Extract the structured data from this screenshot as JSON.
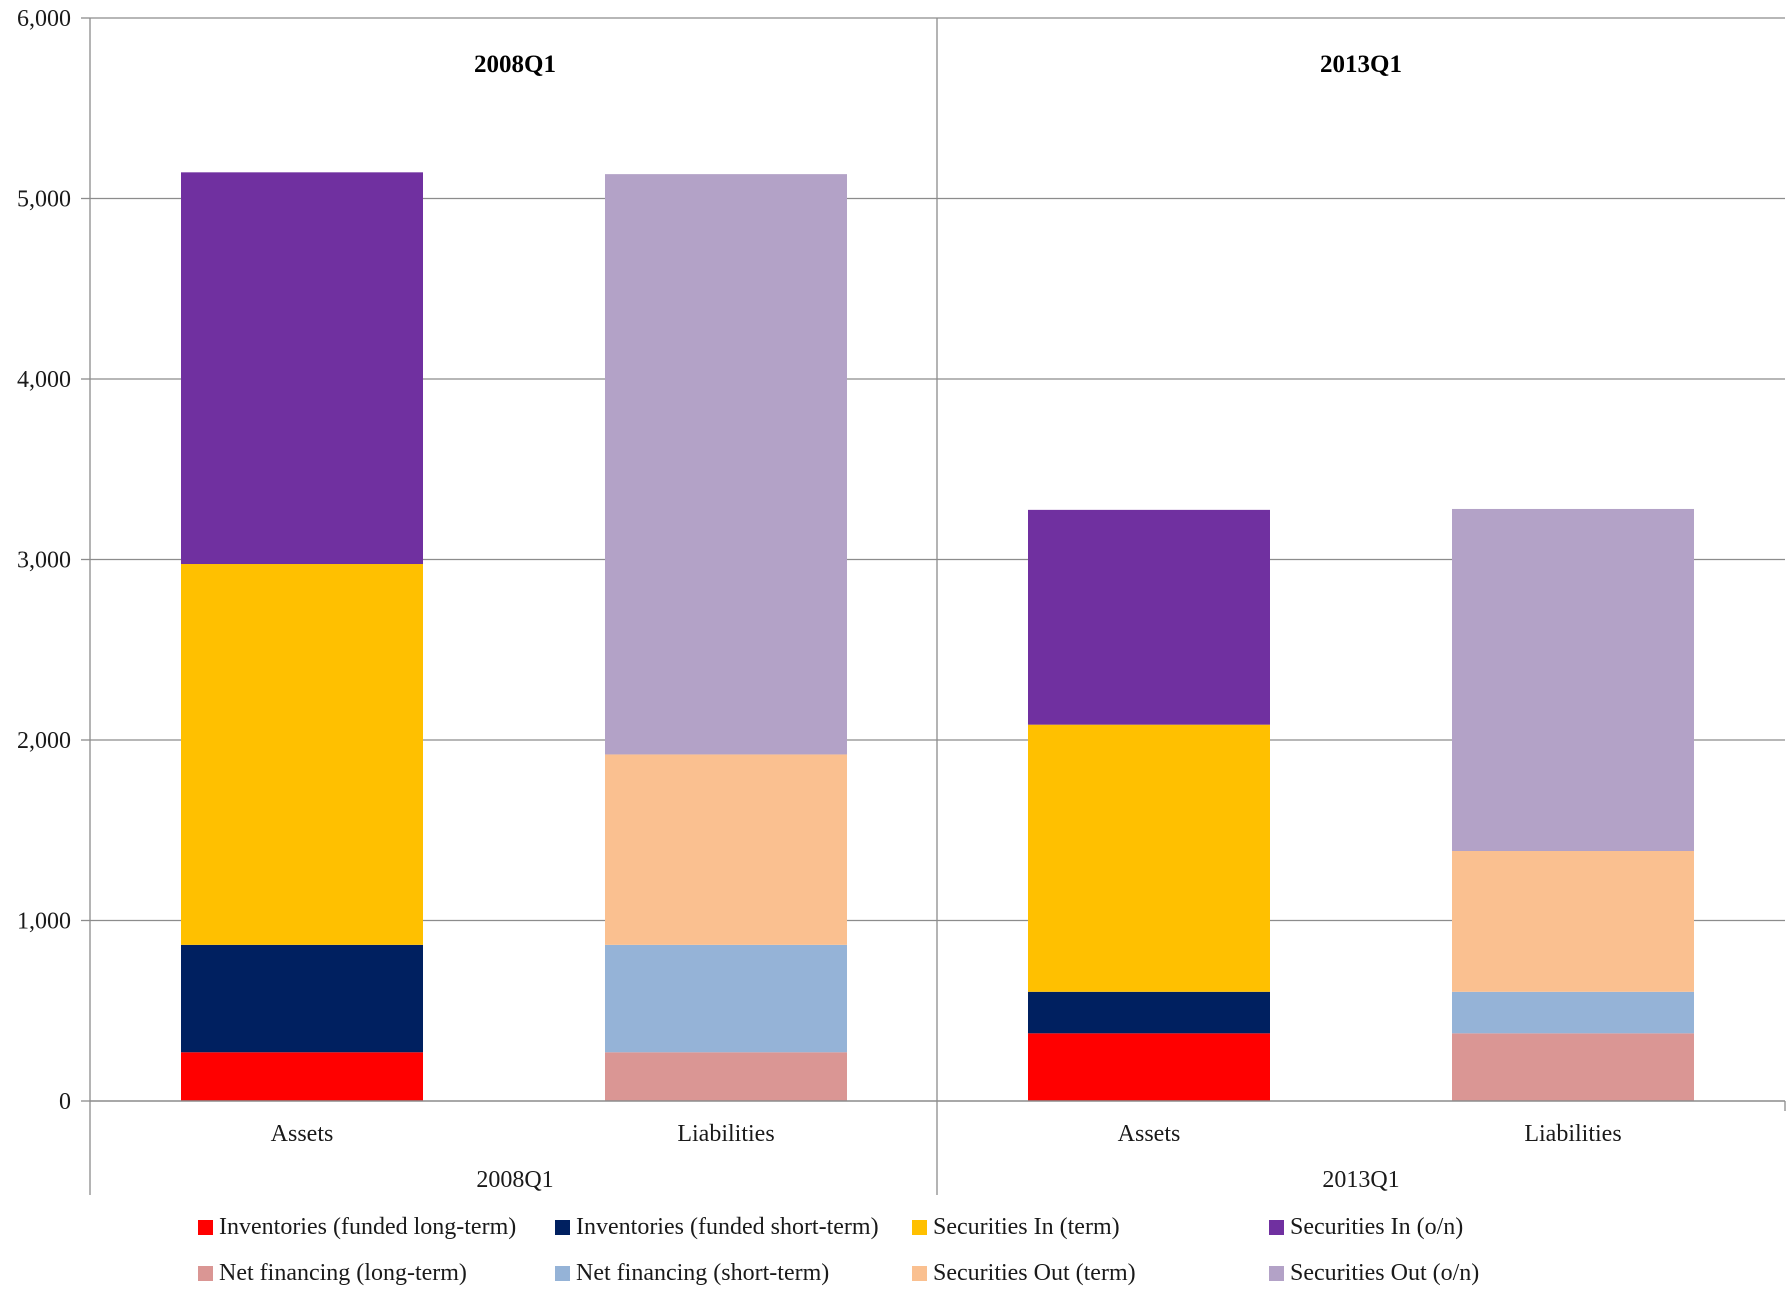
{
  "chart_data": {
    "type": "bar",
    "stacked": true,
    "ylim": [
      0,
      6000
    ],
    "yticks": [
      0,
      1000,
      2000,
      3000,
      4000,
      5000,
      6000
    ],
    "ytick_labels": [
      "0",
      "1,000",
      "2,000",
      "3,000",
      "4,000",
      "5,000",
      "6,000"
    ],
    "grid": true,
    "legend_position": "bottom",
    "groups": [
      {
        "label": "2008Q1",
        "header": "2008Q1",
        "bars": [
          {
            "label": "Assets",
            "segments": [
              {
                "series": "Inventories (funded long-term)",
                "value": 270
              },
              {
                "series": "Inventories (funded short-term)",
                "value": 595
              },
              {
                "series": "Securities In (term)",
                "value": 2110
              },
              {
                "series": "Securities In (o/n)",
                "value": 2170
              }
            ]
          },
          {
            "label": "Liabilities",
            "segments": [
              {
                "series": "Net financing (long-term)",
                "value": 270
              },
              {
                "series": "Net financing (short-term)",
                "value": 595
              },
              {
                "series": "Securities Out (term)",
                "value": 1055
              },
              {
                "series": "Securities Out (o/n)",
                "value": 3215
              }
            ]
          }
        ]
      },
      {
        "label": "2013Q1",
        "header": "2013Q1",
        "bars": [
          {
            "label": "Assets",
            "segments": [
              {
                "series": "Inventories (funded long-term)",
                "value": 375
              },
              {
                "series": "Inventories (funded short-term)",
                "value": 230
              },
              {
                "series": "Securities In (term)",
                "value": 1480
              },
              {
                "series": "Securities In (o/n)",
                "value": 1190
              }
            ]
          },
          {
            "label": "Liabilities",
            "segments": [
              {
                "series": "Net financing (long-term)",
                "value": 375
              },
              {
                "series": "Net financing (short-term)",
                "value": 230
              },
              {
                "series": "Securities Out (term)",
                "value": 780
              },
              {
                "series": "Securities Out (o/n)",
                "value": 1895
              }
            ]
          }
        ]
      }
    ],
    "series": [
      {
        "name": "Inventories (funded long-term)",
        "color": "#ff0000"
      },
      {
        "name": "Inventories (funded short-term)",
        "color": "#002060"
      },
      {
        "name": "Securities In (term)",
        "color": "#ffc000"
      },
      {
        "name": "Securities In (o/n)",
        "color": "#7030a0"
      },
      {
        "name": "Net financing (long-term)",
        "color": "#da9694"
      },
      {
        "name": "Net financing (short-term)",
        "color": "#95b3d7"
      },
      {
        "name": "Securities Out (term)",
        "color": "#fac090"
      },
      {
        "name": "Securities Out (o/n)",
        "color": "#b3a2c7"
      }
    ]
  }
}
